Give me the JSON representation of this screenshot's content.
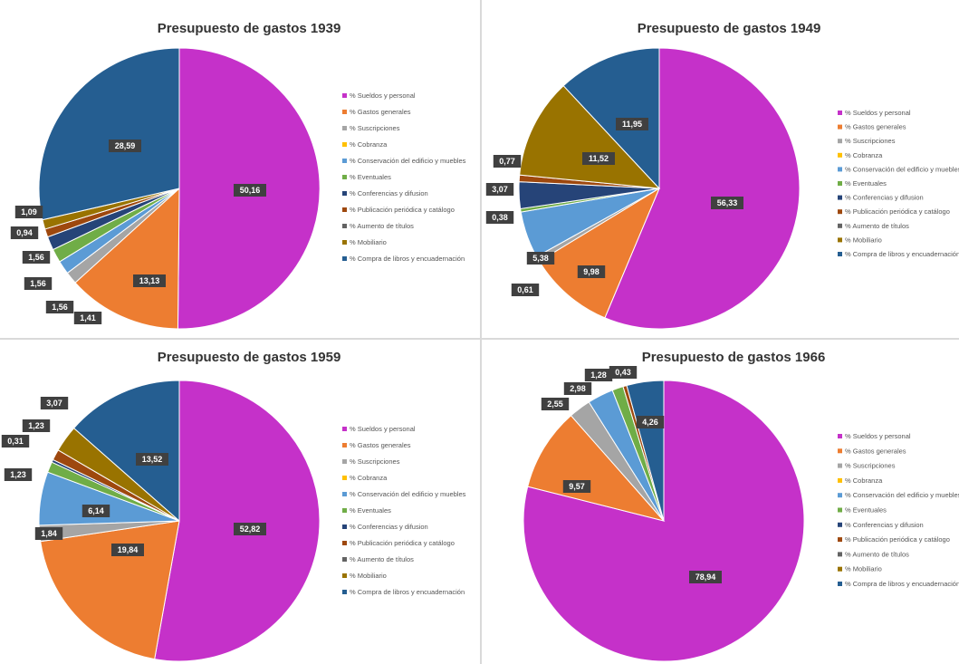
{
  "legend_labels": [
    "% Sueldos y personal",
    "% Gastos generales",
    "% Suscripciones",
    "% Cobranza",
    "% Conservación del edificio y muebles",
    "% Eventuales",
    "% Conferencias y difusion",
    "% Publicación periódica y catálogo",
    "% Aumento de títulos",
    "% Mobiliario",
    "% Compra de libros y encuadernación"
  ],
  "colors": [
    "#c531c9",
    "#ed7d31",
    "#a5a5a5",
    "#ffc000",
    "#5b9bd5",
    "#70ad47",
    "#264478",
    "#9e480e",
    "#636363",
    "#997300",
    "#255e91"
  ],
  "chart_data": [
    {
      "type": "pie",
      "title": "Presupuesto de gastos 1939",
      "categories": [
        "% Sueldos y personal",
        "% Gastos generales",
        "% Suscripciones",
        "% Cobranza",
        "% Conservación del edificio y muebles",
        "% Eventuales",
        "% Conferencias y difusion",
        "% Publicación periódica y catálogo",
        "% Aumento de títulos",
        "% Mobiliario",
        "% Compra de libros y encuadernación"
      ],
      "values": [
        50.16,
        13.13,
        1.41,
        0,
        1.56,
        1.56,
        1.56,
        0.94,
        0,
        1.09,
        28.59
      ],
      "value_labels": [
        "50,16",
        "13,13",
        "1,41",
        "",
        "1,56",
        "1,56",
        "1,56",
        "0,94",
        "",
        "1,09",
        "28,59"
      ],
      "legend_position": "right"
    },
    {
      "type": "pie",
      "title": "Presupuesto de gastos 1949",
      "categories": [
        "% Sueldos y personal",
        "% Gastos generales",
        "% Suscripciones",
        "% Cobranza",
        "% Conservación del edificio y muebles",
        "% Eventuales",
        "% Conferencias y difusion",
        "% Publicación periódica y catálogo",
        "% Aumento de títulos",
        "% Mobiliario",
        "% Compra de libros y encuadernación"
      ],
      "values": [
        56.33,
        9.98,
        0.61,
        0,
        5.38,
        0.38,
        3.07,
        0.77,
        0,
        11.52,
        11.95
      ],
      "value_labels": [
        "56,33",
        "9,98",
        "0,61",
        "",
        "5,38",
        "0,38",
        "3,07",
        "0,77",
        "",
        "11,52",
        "11,95"
      ],
      "legend_position": "right"
    },
    {
      "type": "pie",
      "title": "Presupuesto de gastos 1959",
      "categories": [
        "% Sueldos y personal",
        "% Gastos generales",
        "% Suscripciones",
        "% Cobranza",
        "% Conservación del edificio y muebles",
        "% Eventuales",
        "% Conferencias y difusion",
        "% Publicación periódica y catálogo",
        "% Aumento de títulos",
        "% Mobiliario",
        "% Compra de libros y encuadernación"
      ],
      "values": [
        52.82,
        19.84,
        1.84,
        0,
        6.14,
        1.23,
        0.31,
        1.23,
        0,
        3.07,
        13.52
      ],
      "value_labels": [
        "52,82",
        "19,84",
        "1,84",
        "",
        "6,14",
        "1,23",
        "0,31",
        "1,23",
        "",
        "3,07",
        "13,52"
      ],
      "legend_position": "right"
    },
    {
      "type": "pie",
      "title": "Presupuesto de gastos 1966",
      "categories": [
        "% Sueldos y personal",
        "% Gastos generales",
        "% Suscripciones",
        "% Cobranza",
        "% Conservación del edificio y muebles",
        "% Eventuales",
        "% Conferencias y difusion",
        "% Publicación periódica y catálogo",
        "% Aumento de títulos",
        "% Mobiliario",
        "% Compra de libros y encuadernación"
      ],
      "values": [
        78.94,
        9.57,
        2.55,
        0,
        2.98,
        1.28,
        0,
        0.43,
        0,
        0,
        4.26
      ],
      "value_labels": [
        "78,94",
        "9,57",
        "2,55",
        "",
        "2,98",
        "1,28",
        "",
        "0,43",
        "",
        "",
        "4,26"
      ],
      "legend_position": "right"
    }
  ]
}
